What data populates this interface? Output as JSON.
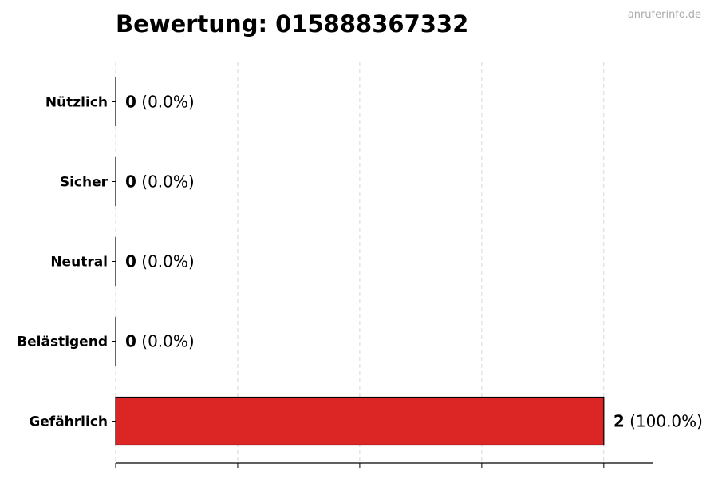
{
  "chart_data": {
    "type": "bar",
    "orientation": "horizontal",
    "title": "Bewertung: 015888367332",
    "watermark": "anruferinfo.de",
    "categories": [
      "Nützlich",
      "Sicher",
      "Neutral",
      "Belästigend",
      "Gefährlich"
    ],
    "values": [
      0,
      0,
      0,
      0,
      2
    ],
    "value_labels": [
      "0",
      "0",
      "0",
      "0",
      "2"
    ],
    "percent_labels": [
      "(0.0%)",
      "(0.0%)",
      "(0.0%)",
      "(0.0%)",
      "(100.0%)"
    ],
    "colors": [
      "#4caf50",
      "#2196f3",
      "#9e9e9e",
      "#ff9800",
      "#dc2626"
    ],
    "xlim": [
      0,
      2.2
    ],
    "xticks": [
      0,
      0.5,
      1,
      1.5,
      2
    ],
    "grid": "x-dashed",
    "xlabel": "",
    "ylabel": ""
  }
}
